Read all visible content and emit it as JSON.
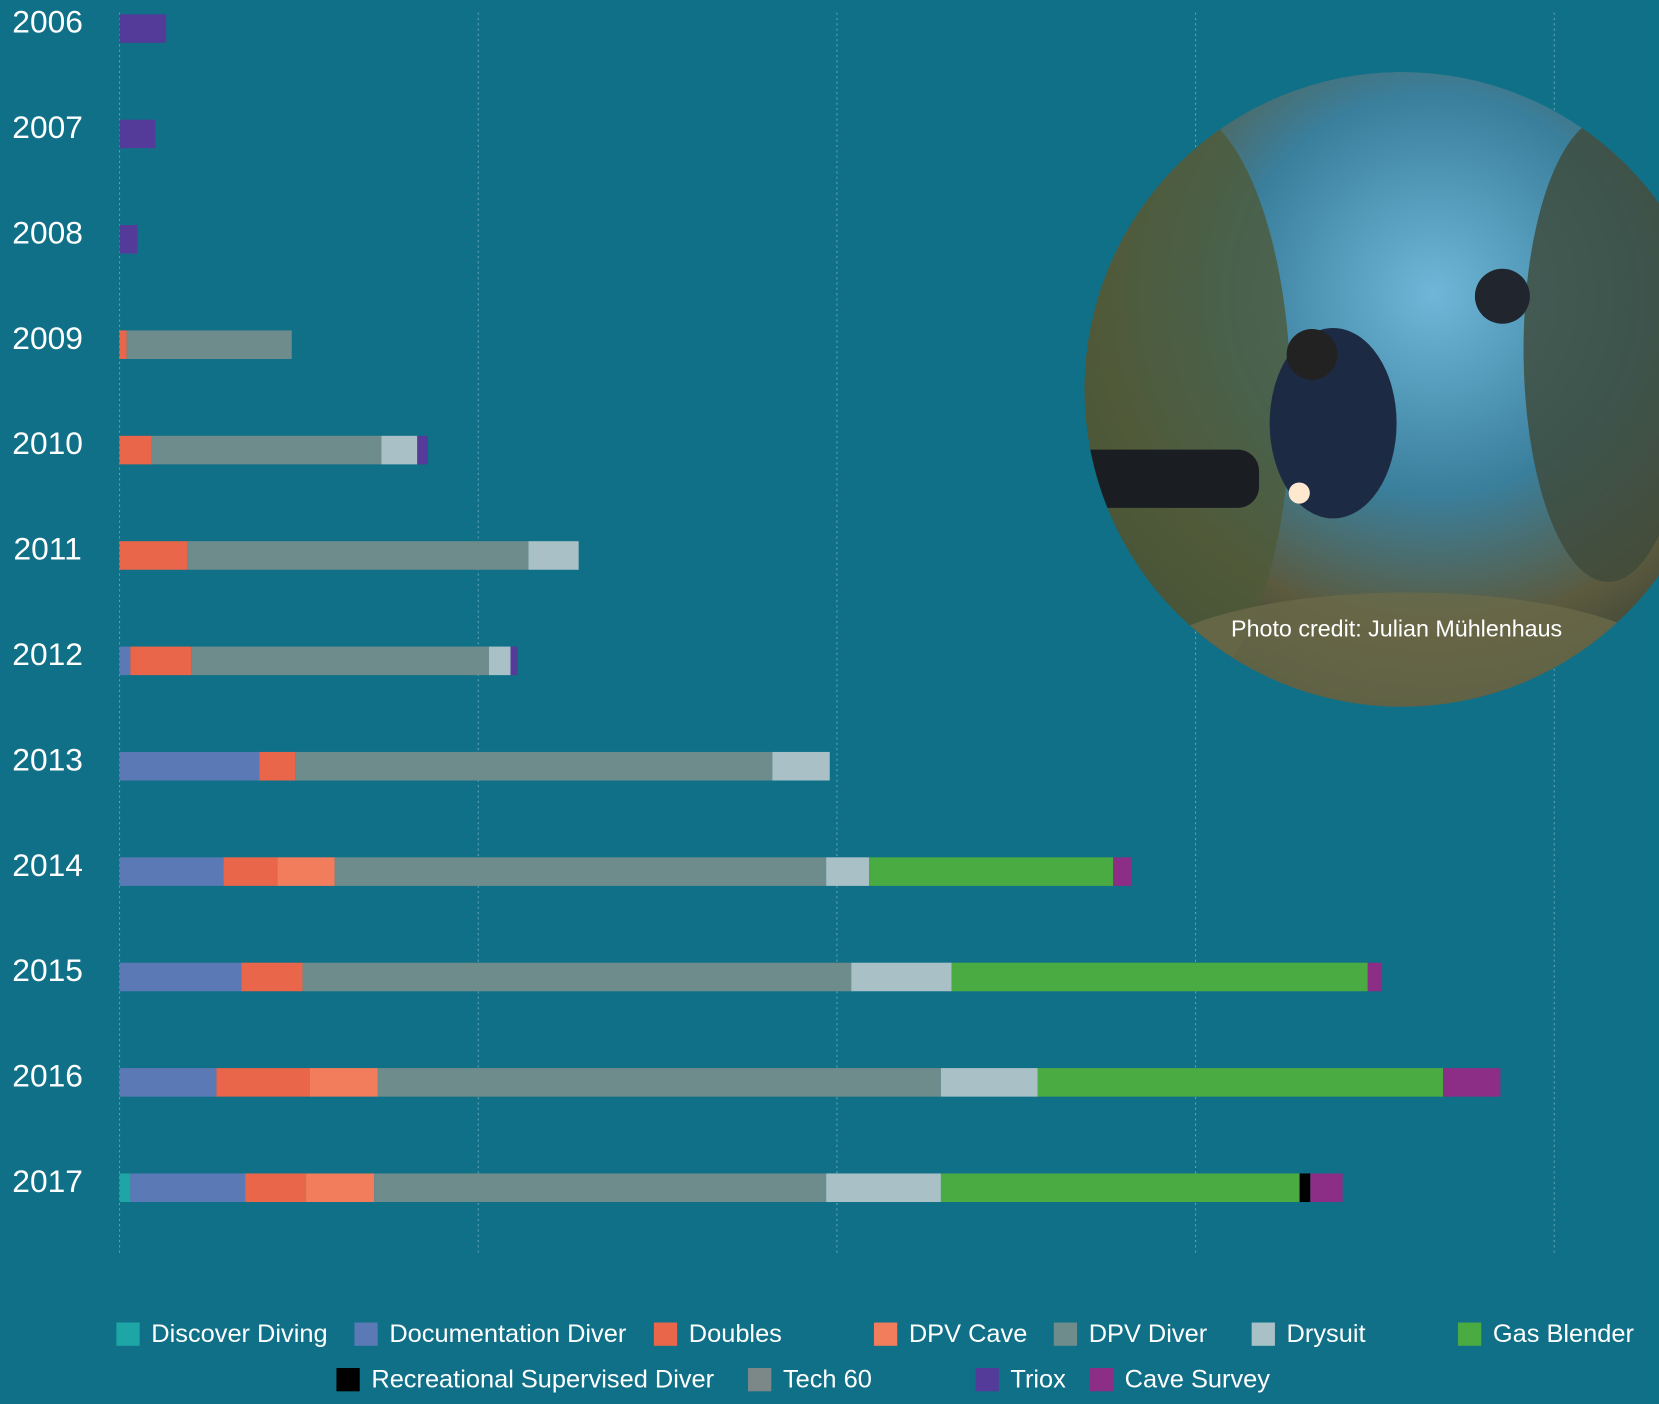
{
  "chart_data": {
    "type": "stacked-barh",
    "categories": [
      "2006",
      "2007",
      "2008",
      "2009",
      "2010",
      "2011",
      "2012",
      "2013",
      "2014",
      "2015",
      "2016",
      "2017"
    ],
    "xlim": [
      0,
      42.9
    ],
    "xticks": [
      0,
      10,
      20,
      30,
      40
    ],
    "grid": true,
    "annotation": "Photo credit: Julian Mühlenhaus",
    "series": [
      {
        "name": "Discover Diving",
        "color": "#1ea6a6",
        "values": [
          null,
          null,
          null,
          null,
          null,
          null,
          null,
          null,
          null,
          null,
          null,
          0.3
        ]
      },
      {
        "name": "Documentation Diver",
        "color": "#5b79b5",
        "values": [
          null,
          null,
          null,
          null,
          null,
          null,
          0.3,
          3.9,
          2.9,
          3.4,
          2.7,
          3.2
        ]
      },
      {
        "name": "Doubles",
        "color": "#e9664b",
        "values": [
          null,
          null,
          null,
          0.2,
          0.9,
          1.9,
          1.7,
          1.0,
          1.5,
          1.7,
          2.6,
          1.7
        ]
      },
      {
        "name": "DPV Cave",
        "color": "#f27d5c",
        "values": [
          null,
          null,
          null,
          null,
          null,
          null,
          null,
          null,
          1.6,
          null,
          1.9,
          1.9
        ]
      },
      {
        "name": "DPV Diver",
        "color": "#6f8c8c",
        "values": [
          null,
          null,
          null,
          4.6,
          6.4,
          9.5,
          8.3,
          13.3,
          13.7,
          15.3,
          15.7,
          12.6
        ]
      },
      {
        "name": "Drysuit",
        "color": "#a9c1c6",
        "values": [
          null,
          null,
          null,
          null,
          1.0,
          1.4,
          0.6,
          1.6,
          1.2,
          2.8,
          2.7,
          3.2
        ]
      },
      {
        "name": "Gas Blender",
        "color": "#4aab42",
        "values": [
          null,
          null,
          null,
          null,
          null,
          null,
          null,
          null,
          6.8,
          11.6,
          11.3,
          10.0
        ]
      },
      {
        "name": "Recreational Supervised Diver",
        "color": "#000000",
        "values": [
          null,
          null,
          null,
          null,
          null,
          null,
          null,
          null,
          null,
          null,
          null,
          0.3
        ]
      },
      {
        "name": "Tech 60",
        "color": "#7c8888",
        "values": [
          null,
          null,
          null,
          null,
          null,
          null,
          null,
          null,
          null,
          null,
          null,
          null
        ]
      },
      {
        "name": "Triox",
        "color": "#553b99",
        "values": [
          1.3,
          1.0,
          0.5,
          null,
          0.3,
          null,
          0.2,
          null,
          null,
          null,
          null,
          null
        ]
      },
      {
        "name": "Cave Survey",
        "color": "#8c2e86",
        "values": [
          null,
          null,
          null,
          null,
          null,
          null,
          null,
          null,
          0.5,
          0.4,
          1.6,
          0.9
        ]
      }
    ]
  }
}
